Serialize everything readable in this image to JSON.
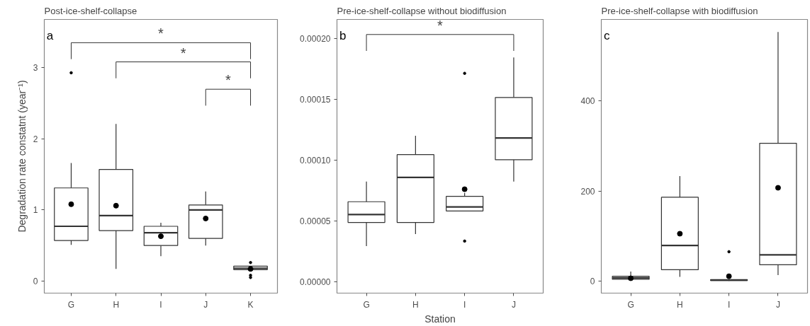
{
  "chart_data": [
    {
      "type": "box",
      "title": "Post-ice-shelf-collapse",
      "ylabel": "Degradation rate constatnt (year⁻¹)",
      "categories": [
        "G",
        "H",
        "I",
        "J",
        "K"
      ],
      "boxes": [
        {
          "low": 0.51,
          "q1": 0.57,
          "median": 0.77,
          "q3": 1.31,
          "high": 1.66,
          "mean": 1.08,
          "outliers": [
            2.93
          ]
        },
        {
          "low": 0.17,
          "q1": 0.71,
          "median": 0.92,
          "q3": 1.57,
          "high": 2.21,
          "mean": 1.06
        },
        {
          "low": 0.35,
          "q1": 0.5,
          "median": 0.68,
          "q3": 0.77,
          "high": 0.82,
          "mean": 0.63
        },
        {
          "low": 0.5,
          "q1": 0.6,
          "median": 1.0,
          "q3": 1.07,
          "high": 1.26,
          "mean": 0.88
        },
        {
          "low": 0.16,
          "q1": 0.16,
          "median": 0.18,
          "q3": 0.21,
          "high": 0.21,
          "mean": 0.17,
          "outliers": [
            0.26,
            0.08,
            0.05
          ]
        }
      ],
      "ylim": [
        -0.17,
        3.68
      ],
      "yticks": [
        0,
        1,
        2,
        3
      ],
      "grid": false,
      "annotations": [
        "a",
        "*",
        "*",
        "*"
      ]
    },
    {
      "type": "box",
      "title": "Pre-ice-shelf-collapse without biodiffusion",
      "xlabel": "Station",
      "categories": [
        "G",
        "H",
        "I",
        "J"
      ],
      "boxes": [
        {
          "low": 2.92e-05,
          "q1": 4.87e-05,
          "median": 5.52e-05,
          "q3": 6.58e-05,
          "high": 8.24e-05
        },
        {
          "low": 3.91e-05,
          "q1": 4.87e-05,
          "median": 8.59e-05,
          "q3": 0.0001046,
          "high": 0.0001202
        },
        {
          "low": 5.82e-05,
          "q1": 5.82e-05,
          "median": 6.15e-05,
          "q3": 7.02e-05,
          "high": 7.31e-05,
          "mean": 7.61e-05,
          "outliers": [
            0.0001716,
            3.34e-05
          ]
        },
        {
          "low": 8.24e-05,
          "q1": 0.0001004,
          "median": 0.0001183,
          "q3": 0.0001517,
          "high": 0.0001847
        }
      ],
      "ylim": [
        -9.5e-06,
        0.000216
      ],
      "yticks": [
        {
          "value": 0,
          "label": "0.00000"
        },
        {
          "value": 5e-05,
          "label": "0.00005"
        },
        {
          "value": 0.0001,
          "label": "0.00010"
        },
        {
          "value": 0.00015,
          "label": "0.00015"
        },
        {
          "value": 0.0002,
          "label": "0.00020"
        }
      ],
      "grid": false,
      "annotations": [
        "b",
        "*"
      ]
    },
    {
      "type": "box",
      "title": "Pre-ice-shelf-collapse with biodiffusion",
      "categories": [
        "G",
        "H",
        "I",
        "J"
      ],
      "boxes": [
        {
          "low": 2,
          "q1": 3.7,
          "median": 7,
          "q3": 10.5,
          "high": 21,
          "mean": 6
        },
        {
          "low": 9,
          "q1": 25,
          "median": 79,
          "q3": 186,
          "high": 233,
          "mean": 105
        },
        {
          "low": 0,
          "q1": 1,
          "median": 2,
          "q3": 3,
          "high": 4,
          "mean": 10.5,
          "outliers": [
            65
          ]
        },
        {
          "low": 13,
          "q1": 36,
          "median": 58,
          "q3": 306,
          "high": 553,
          "mean": 207
        }
      ],
      "ylim": [
        -27,
        581
      ],
      "yticks": [
        0,
        200,
        400
      ],
      "grid": false,
      "annotations": [
        "c"
      ]
    }
  ]
}
